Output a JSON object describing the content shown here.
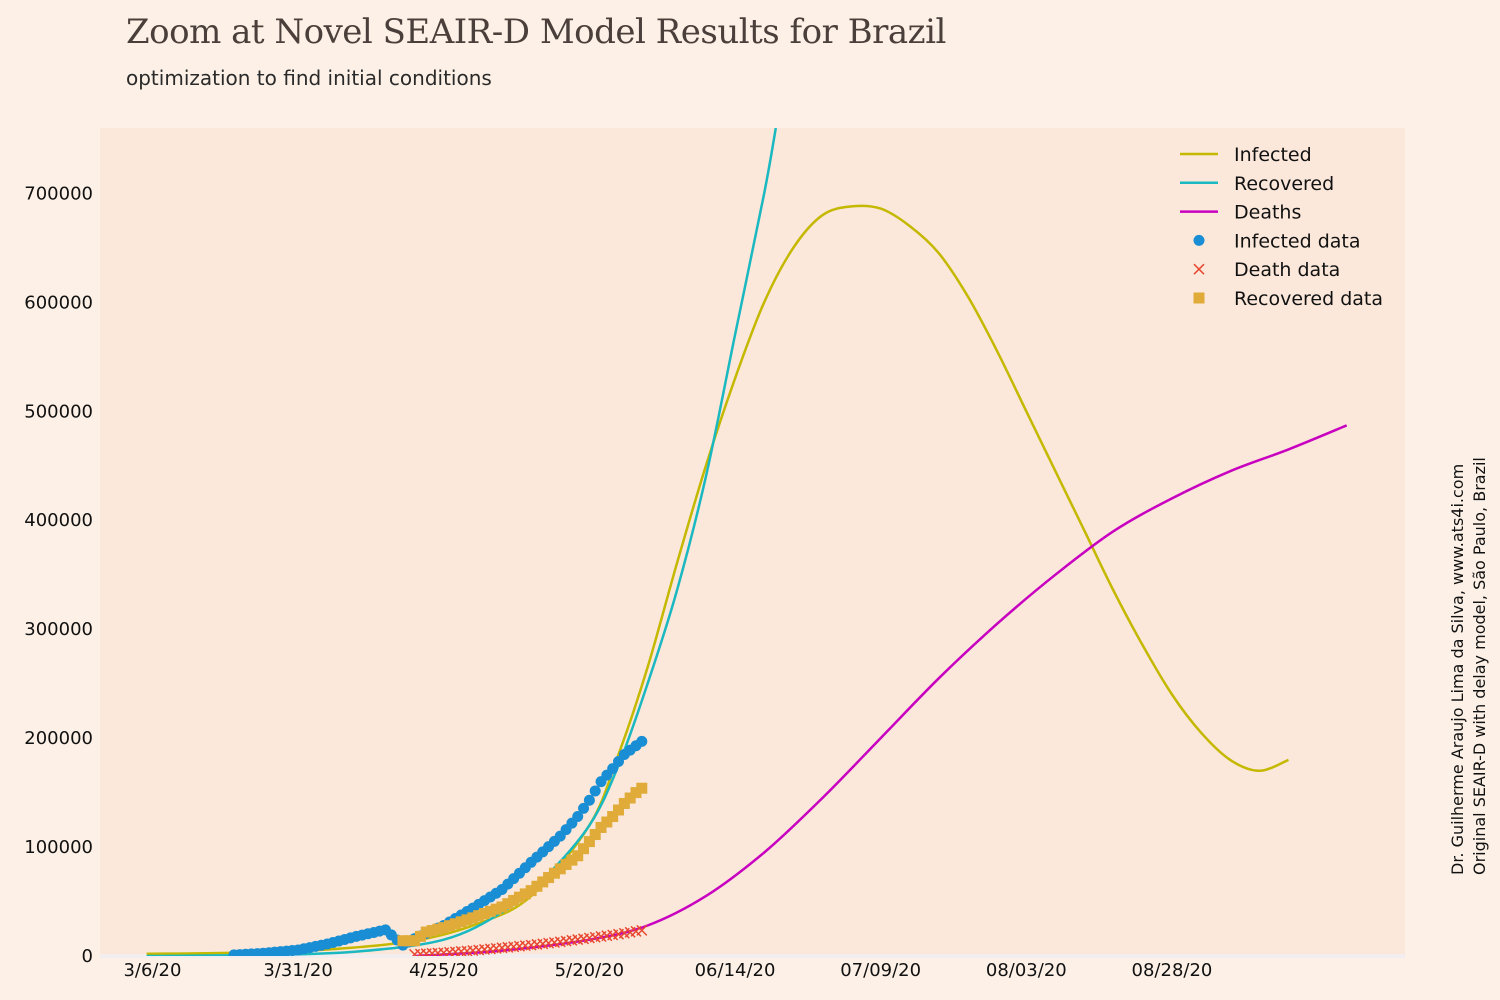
{
  "chart_data": {
    "type": "line",
    "title": "Zoom at Novel SEAIR-D Model Results for Brazil",
    "subtitle": "optimization to find initial conditions",
    "x_ticks": [
      "3/6/20",
      "3/31/20",
      "4/25/20",
      "5/20/20",
      "06/14/20",
      "07/09/20",
      "08/03/20",
      "08/28/20"
    ],
    "y_ticks": [
      "0",
      "100000",
      "200000",
      "300000",
      "400000",
      "500000",
      "600000",
      "700000"
    ],
    "xlim": [
      "2020-02-26",
      "2020-10-07"
    ],
    "ylim": [
      0,
      760000
    ],
    "grid": false,
    "legend_position": "top-right",
    "series": [
      {
        "name": "Infected",
        "kind": "line",
        "color": "#c4b800",
        "x": [
          "2020-03-05",
          "2020-03-20",
          "2020-04-05",
          "2020-04-20",
          "2020-05-01",
          "2020-05-10",
          "2020-05-20",
          "2020-05-25",
          "2020-05-30",
          "2020-06-04",
          "2020-06-09",
          "2020-06-14",
          "2020-06-19",
          "2020-06-24",
          "2020-06-29",
          "2020-07-04",
          "2020-07-09",
          "2020-07-14",
          "2020-07-19",
          "2020-07-24",
          "2020-07-29",
          "2020-08-03",
          "2020-08-08",
          "2020-08-13",
          "2020-08-18",
          "2020-08-23",
          "2020-08-28",
          "2020-09-02",
          "2020-09-07",
          "2020-09-12",
          "2020-09-17"
        ],
        "y": [
          2000,
          3000,
          6000,
          14000,
          30000,
          55000,
          120000,
          185000,
          265000,
          360000,
          450000,
          530000,
          600000,
          650000,
          680000,
          688000,
          686000,
          670000,
          645000,
          605000,
          555000,
          500000,
          445000,
          390000,
          335000,
          285000,
          240000,
          205000,
          180000,
          170000,
          180000
        ]
      },
      {
        "name": "Recovered",
        "kind": "line",
        "color": "#1ab8c0",
        "x": [
          "2020-03-05",
          "2020-03-25",
          "2020-04-10",
          "2020-04-25",
          "2020-05-05",
          "2020-05-12",
          "2020-05-20",
          "2020-05-25",
          "2020-05-30",
          "2020-06-04",
          "2020-06-09",
          "2020-06-14",
          "2020-06-19",
          "2020-06-21"
        ],
        "y": [
          0,
          1000,
          4000,
          15000,
          40000,
          70000,
          120000,
          175000,
          250000,
          335000,
          440000,
          570000,
          700000,
          760000
        ]
      },
      {
        "name": "Deaths",
        "kind": "line",
        "color": "#c800c0",
        "x": [
          "2020-04-20",
          "2020-05-05",
          "2020-05-20",
          "2020-05-30",
          "2020-06-09",
          "2020-06-19",
          "2020-06-29",
          "2020-07-09",
          "2020-07-19",
          "2020-07-29",
          "2020-08-08",
          "2020-08-18",
          "2020-08-28",
          "2020-09-07",
          "2020-09-17",
          "2020-09-27"
        ],
        "y": [
          0,
          5000,
          15000,
          28000,
          55000,
          95000,
          145000,
          200000,
          255000,
          305000,
          350000,
          390000,
          420000,
          445000,
          465000,
          487000
        ]
      },
      {
        "name": "Infected data",
        "kind": "scatter",
        "marker": "circle",
        "color": "#1a8ed4",
        "x": [
          "2020-03-20",
          "2020-03-25",
          "2020-03-31",
          "2020-04-05",
          "2020-04-10",
          "2020-04-15",
          "2020-04-18",
          "2020-04-20",
          "2020-04-25",
          "2020-04-30",
          "2020-05-05",
          "2020-05-10",
          "2020-05-15",
          "2020-05-18",
          "2020-05-20",
          "2020-05-22",
          "2020-05-24",
          "2020-05-26",
          "2020-05-28",
          "2020-05-29"
        ],
        "y": [
          1000,
          2500,
          5500,
          11000,
          18000,
          24000,
          10000,
          16000,
          28000,
          44000,
          61000,
          86000,
          110000,
          128000,
          143000,
          160000,
          172000,
          185000,
          193000,
          197000
        ]
      },
      {
        "name": "Death data",
        "kind": "scatter",
        "marker": "x",
        "color": "#e84830",
        "x": [
          "2020-04-20",
          "2020-04-25",
          "2020-04-30",
          "2020-05-05",
          "2020-05-10",
          "2020-05-15",
          "2020-05-20",
          "2020-05-25",
          "2020-05-29"
        ],
        "y": [
          1500,
          3000,
          5000,
          7500,
          10000,
          13000,
          16500,
          20000,
          23500
        ]
      },
      {
        "name": "Recovered data",
        "kind": "scatter",
        "marker": "square",
        "color": "#e0ab38",
        "x": [
          "2020-04-18",
          "2020-04-20",
          "2020-04-22",
          "2020-04-25",
          "2020-04-30",
          "2020-05-05",
          "2020-05-10",
          "2020-05-15",
          "2020-05-18",
          "2020-05-20",
          "2020-05-22",
          "2020-05-24",
          "2020-05-26",
          "2020-05-28",
          "2020-05-29"
        ],
        "y": [
          14000,
          14000,
          22000,
          26000,
          35000,
          45000,
          60000,
          80000,
          92000,
          105000,
          118000,
          128000,
          140000,
          150000,
          154000
        ]
      }
    ],
    "annotations": [
      "Dr. Guilherme Araujo Lima da Silva, www.ats4i.com",
      "Original SEAIR-D with delay model, São Paulo, Brazil"
    ]
  }
}
